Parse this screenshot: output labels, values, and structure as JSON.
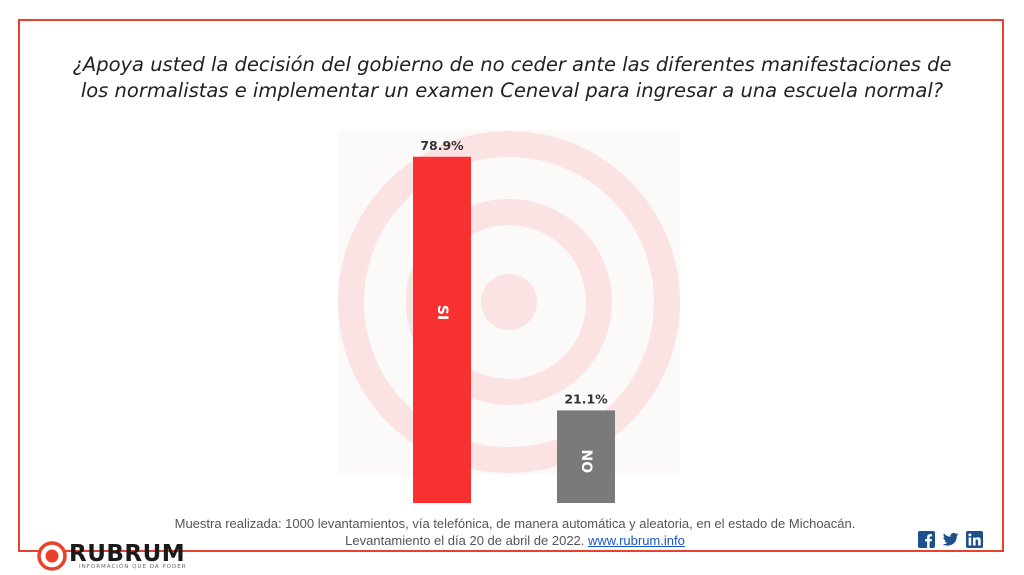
{
  "title": "¿Apoya usted la decisión del gobierno de no ceder ante las diferentes manifestaciones de los normalistas e implementar un examen Ceneval para ingresar a una escuela normal?",
  "chart_data": {
    "type": "bar",
    "title": "¿Apoya usted la decisión del gobierno de no ceder ante las diferentes manifestaciones de los normalistas e implementar un examen Ceneval para ingresar a una escuela normal?",
    "categories": [
      "SI",
      "NO"
    ],
    "values": [
      78.9,
      21.1
    ],
    "value_labels": [
      "78.9%",
      "21.1%"
    ],
    "unit": "%",
    "colors": [
      "#f8302f",
      "#7a7a7a"
    ],
    "ylim": [
      0,
      85
    ],
    "grid": false,
    "legend": "none",
    "category_label_orientation": "rotated-inside-bar"
  },
  "footnote": {
    "line1": "Muestra realizada: 1000 levantamientos, vía telefónica, de manera automática y aleatoria, en el estado de Michoacán.",
    "line2_prefix": "Levantamiento el día 20 de abril de 2022.",
    "link": "www.rubrum.info"
  },
  "brand": {
    "name": "RUBRUM",
    "tagline": "INFORMACIÓN QUE DA PODER",
    "accent_color": "#e8412e"
  },
  "social": [
    "facebook-icon",
    "twitter-icon",
    "linkedin-icon"
  ]
}
